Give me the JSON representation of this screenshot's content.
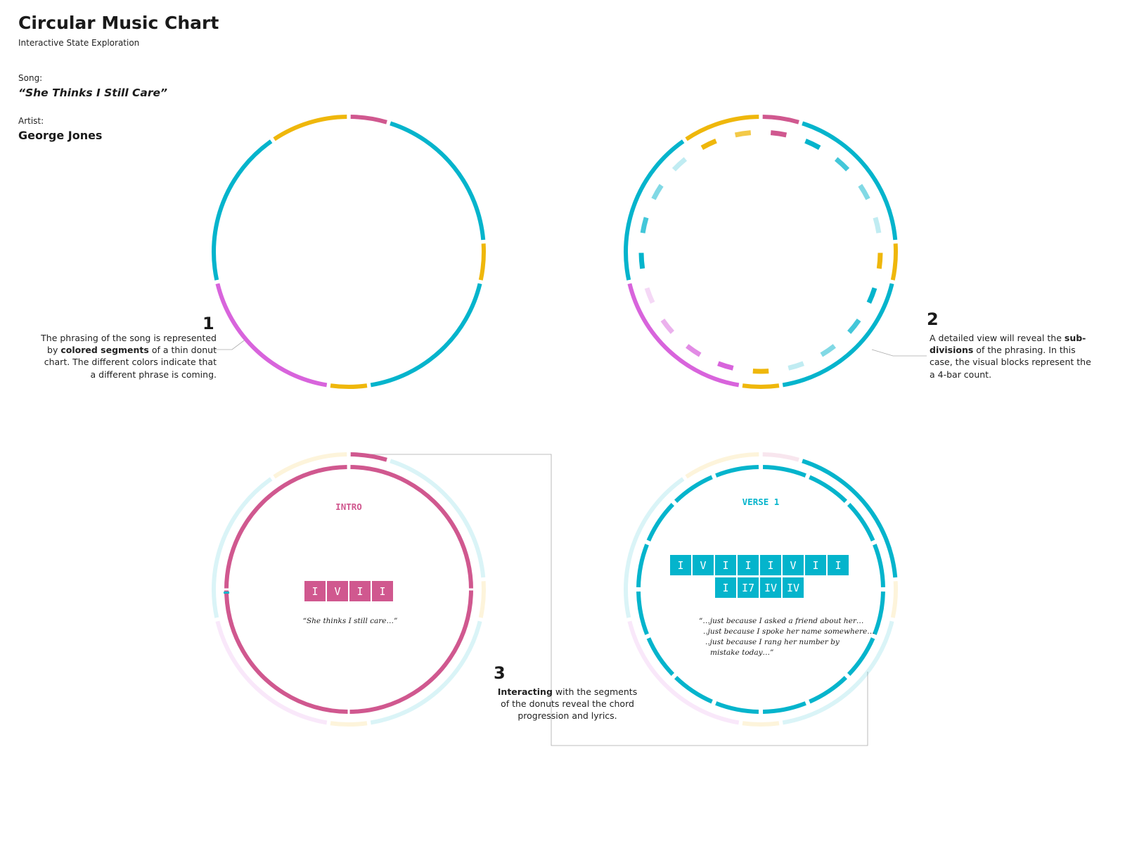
{
  "header": {
    "title": "Circular Music Chart",
    "subtitle": "Interactive State Exploration"
  },
  "song": {
    "label": "Song:",
    "title": "“She Thinks I Still Care”"
  },
  "artist": {
    "label": "Artist:",
    "name": "George Jones"
  },
  "colors": {
    "intro": "#d0588f",
    "verse": "#04b4cc",
    "bridge": "#efb70b",
    "chorus": "#d864dc",
    "leader": "#aaaaaa",
    "chord_text": "#ffffff"
  },
  "chart_data": {
    "type": "donut",
    "phrases": [
      {
        "section": "intro",
        "bars": 4
      },
      {
        "section": "verse",
        "bars": 16
      },
      {
        "section": "bridge",
        "bars": 4
      },
      {
        "section": "verse",
        "bars": 16
      },
      {
        "section": "bridge",
        "bars": 4
      },
      {
        "section": "chorus",
        "bars": 16
      },
      {
        "section": "verse",
        "bars": 16
      },
      {
        "section": "bridge",
        "bars": 8
      }
    ]
  },
  "steps": [
    {
      "number": "1",
      "pre": "The phrasing of the song is represented by ",
      "bold": "colored segments",
      "post": " of a thin donut chart. The different colors indicate that a different phrase is coming."
    },
    {
      "number": "2",
      "pre": "A detailed view will reveal the ",
      "bold": "sub-divisions",
      "post": " of the phrasing. In this case, the visual blocks represent the a 4-bar count."
    },
    {
      "number": "3",
      "pre": "",
      "bold": "Interacting",
      "post": " with the segments of the donuts reveal the chord progression and lyrics."
    }
  ],
  "detail_intro": {
    "section_label": "INTRO",
    "chords": [
      "I",
      "V",
      "I",
      "I"
    ],
    "lyrics": [
      "“She thinks I still care…”"
    ]
  },
  "detail_verse": {
    "section_label": "VERSE 1",
    "chords_row1": [
      "I",
      "V",
      "I",
      "I",
      "I",
      "V",
      "I",
      "I"
    ],
    "chords_row2": [
      "I",
      "I7",
      "IV",
      "IV"
    ],
    "lyrics": [
      "“…just because I asked a friend about her…",
      "..just because I spoke her name somewhere…",
      "..just because I rang her number by",
      "mistake today…”"
    ]
  }
}
